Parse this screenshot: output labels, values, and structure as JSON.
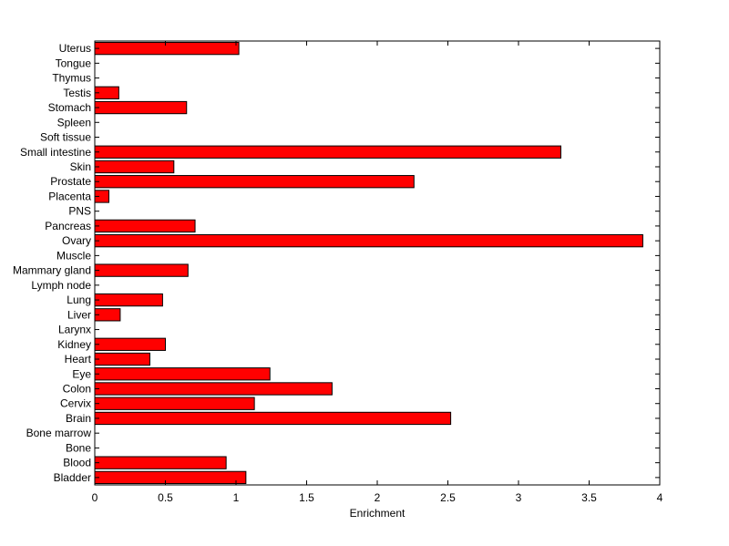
{
  "chart_data": {
    "type": "bar",
    "orientation": "horizontal",
    "categories": [
      "Bladder",
      "Blood",
      "Bone",
      "Bone marrow",
      "Brain",
      "Cervix",
      "Colon",
      "Eye",
      "Heart",
      "Kidney",
      "Larynx",
      "Liver",
      "Lung",
      "Lymph node",
      "Mammary gland",
      "Muscle",
      "Ovary",
      "Pancreas",
      "PNS",
      "Placenta",
      "Prostate",
      "Skin",
      "Small intestine",
      "Soft tissue",
      "Spleen",
      "Stomach",
      "Testis",
      "Thymus",
      "Tongue",
      "Uterus"
    ],
    "values": [
      1.07,
      0.93,
      0,
      0,
      2.52,
      1.13,
      1.68,
      1.24,
      0.39,
      0.5,
      0,
      0.18,
      0.48,
      0,
      0.66,
      0,
      3.88,
      0.71,
      0,
      0.1,
      2.26,
      0.56,
      3.3,
      0,
      0,
      0.65,
      0.17,
      0,
      0,
      1.02
    ],
    "xlabel": "Enrichment",
    "ylabel": "",
    "title": "",
    "xlim": [
      0,
      4
    ],
    "xticks": [
      "0",
      "0.5",
      "1",
      "1.5",
      "2",
      "2.5",
      "3",
      "3.5",
      "4"
    ],
    "grid": false,
    "bar_color": "#ff0000",
    "bar_edge_color": "#000000"
  }
}
